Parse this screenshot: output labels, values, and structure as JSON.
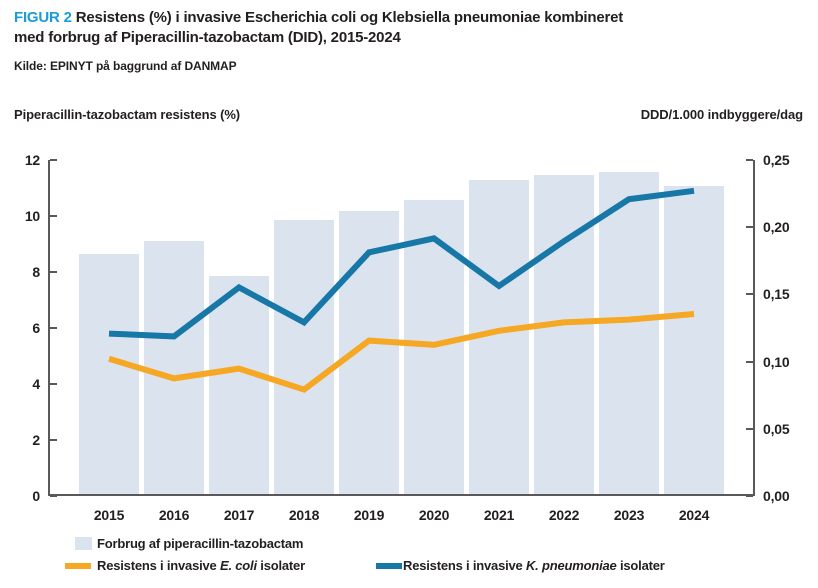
{
  "figure": {
    "label": "FIGUR 2",
    "title": "Resistens (%) i invasive Escherichia coli og Klebsiella pneumoniae kombineret med forbrug af Piperacillin-tazobactam (DID), 2015-2024",
    "source": "Kilde: EPINYT på baggrund af DANMAP"
  },
  "axis_headers": {
    "left": "Piperacillin-tazobactam resistens (%)",
    "right": "DDD/1.000 indbyggere/dag"
  },
  "chart_data": {
    "type": "bar+line",
    "title": "Resistens (%) i invasive Escherichia coli og Klebsiella pneumoniae kombineret med forbrug af Piperacillin-tazobactam (DID), 2015-2024",
    "categories": [
      "2015",
      "2016",
      "2017",
      "2018",
      "2019",
      "2020",
      "2021",
      "2022",
      "2023",
      "2024"
    ],
    "left_axis": {
      "label": "Piperacillin-tazobactam resistens (%)",
      "range": [
        0,
        12
      ],
      "tick_values": [
        0,
        2,
        4,
        6,
        8,
        10,
        12
      ],
      "ticks": [
        "0",
        "2",
        "4",
        "6",
        "8",
        "10",
        "12"
      ]
    },
    "right_axis": {
      "label": "DDD/1.000 indbyggere/dag",
      "range": [
        0,
        0.25
      ],
      "tick_values": [
        0,
        0.05,
        0.1,
        0.15,
        0.2,
        0.25
      ],
      "ticks": [
        "0,00",
        "0,05",
        "0,10",
        "0,15",
        "0,20",
        "0,25"
      ]
    },
    "series": [
      {
        "key": "forbrug",
        "name": "Forbrug af piperacillin-tazobactam",
        "type": "bar",
        "axis": "right",
        "color": "#DBE4EE",
        "values": [
          0.18,
          0.19,
          0.164,
          0.205,
          0.212,
          0.22,
          0.235,
          0.239,
          0.241,
          0.231
        ]
      },
      {
        "key": "ecoli",
        "name": "Resistens i invasive E. coli isolater",
        "type": "line",
        "axis": "left",
        "color": "#F6A724",
        "values": [
          4.9,
          4.2,
          4.55,
          3.8,
          5.55,
          5.4,
          5.9,
          6.2,
          6.3,
          6.5
        ]
      },
      {
        "key": "kpneumoniae",
        "name": "Resistens i invasive K. pneumoniae isolater",
        "type": "line",
        "axis": "left",
        "color": "#1778A8",
        "values": [
          5.8,
          5.7,
          7.45,
          6.2,
          8.7,
          9.2,
          7.5,
          9.1,
          10.6,
          10.9
        ]
      }
    ],
    "grid": false,
    "legend_position": "bottom"
  },
  "legend": {
    "bar": {
      "label": "Forbrug af piperacillin-tazobactam"
    },
    "ecoli": {
      "prefix": "Resistens i invasive ",
      "italic": "E. coli",
      "suffix": " isolater"
    },
    "kpneumoniae": {
      "prefix": "Resistens i invasive ",
      "italic": "K. pneumoniae",
      "suffix": " isolater"
    }
  },
  "colors": {
    "figure_label": "#1A9CD8",
    "text": "#231F20",
    "bar": "#DBE4EE",
    "ecoli_line": "#F6A724",
    "kpneumoniae_line": "#1778A8",
    "axis": "#595959"
  }
}
